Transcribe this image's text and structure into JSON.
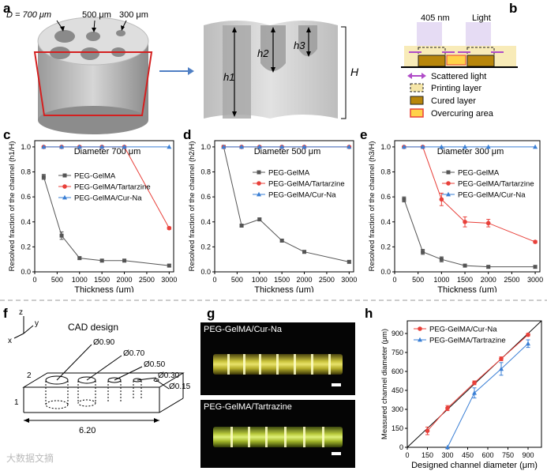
{
  "panels": {
    "a": "a",
    "b": "b",
    "c": "c",
    "d": "d",
    "e": "e",
    "f": "f",
    "g": "g",
    "h": "h"
  },
  "panel_a": {
    "d_label": "D = 700 μm",
    "d500": "500 μm",
    "d300": "300 μm",
    "h1": "h1",
    "h2": "h2",
    "h3": "h3",
    "H": "H"
  },
  "panel_b": {
    "wavelength": "405 nm",
    "light": "Light",
    "legend": [
      {
        "label": "Scattered light",
        "color": "#b04cc8"
      },
      {
        "label": "Printing layer",
        "color": "#f5e6a8"
      },
      {
        "label": "Cured layer",
        "color": "#b8860b"
      },
      {
        "label": "Overcuring area",
        "color": "#ffd24a"
      }
    ]
  },
  "panel_f": {
    "title": "CAD design",
    "axes": {
      "z": "z",
      "y": "y",
      "x": "x"
    },
    "dims": [
      "Ø0.90",
      "Ø0.70",
      "Ø0.50",
      "Ø0.30",
      "Ø0.15"
    ],
    "width": "2",
    "height": "1",
    "length": "6.20"
  },
  "panel_g": {
    "top_label": "PEG-GelMA/Cur-Na",
    "bottom_label": "PEG-GelMA/Tartrazine"
  },
  "watermark": "大数据文摘",
  "colors": {
    "gelma": "#555555",
    "tartrazine": "#e8403a",
    "curna": "#3a7fd5"
  },
  "chart_data": [
    {
      "id": "c",
      "type": "line",
      "title": "Diameter 700 μm",
      "xlabel": "Thickness (μm)",
      "ylabel": "Resolved fraction of the channel (h1/H)",
      "xlim": [
        0,
        3100
      ],
      "ylim": [
        0,
        1.05
      ],
      "xticks": [
        0,
        500,
        1000,
        1500,
        2000,
        2500,
        3000
      ],
      "xtick_labels": [
        "0",
        "500",
        "1000",
        "1500",
        "2000",
        "2500",
        "3000"
      ],
      "yticks": [
        0,
        0.2,
        0.4,
        0.6,
        0.8,
        1.0
      ],
      "ytick_labels": [
        "0.0",
        "0.2",
        "0.4",
        "0.6",
        "0.8",
        "1.0"
      ],
      "series": [
        {
          "name": "PEG-GelMA",
          "color": "#555555",
          "marker": "square",
          "x": [
            200,
            600,
            1000,
            1500,
            2000,
            3000
          ],
          "y": [
            0.76,
            0.29,
            0.11,
            0.09,
            0.09,
            0.05
          ],
          "err": [
            0.02,
            0.03,
            0.01,
            0.01,
            0.01,
            0.01
          ]
        },
        {
          "name": "PEG-GelMA/Tartarzine",
          "color": "#e8403a",
          "marker": "circle",
          "x": [
            200,
            600,
            1000,
            1500,
            2000,
            3000
          ],
          "y": [
            1,
            1,
            1,
            1,
            1,
            0.35
          ],
          "err": [
            0,
            0,
            0,
            0,
            0,
            0.01
          ]
        },
        {
          "name": "PEG-GelMA/Cur-Na",
          "color": "#3a7fd5",
          "marker": "triangle",
          "x": [
            200,
            600,
            1000,
            1500,
            2000,
            3000
          ],
          "y": [
            1,
            1,
            1,
            1,
            1,
            1
          ],
          "err": [
            0,
            0,
            0,
            0,
            0,
            0
          ]
        }
      ]
    },
    {
      "id": "d",
      "type": "line",
      "title": "Diameter 500 μm",
      "xlabel": "Thickness (μm)",
      "ylabel": "Resolved fraction of the channel (h2/H)",
      "xlim": [
        0,
        3100
      ],
      "ylim": [
        0,
        1.05
      ],
      "xticks": [
        0,
        500,
        1000,
        1500,
        2000,
        2500,
        3000
      ],
      "xtick_labels": [
        "0",
        "500",
        "1000",
        "1500",
        "2000",
        "2500",
        "3000"
      ],
      "yticks": [
        0,
        0.2,
        0.4,
        0.6,
        0.8,
        1.0
      ],
      "ytick_labels": [
        "0.0",
        "0.2",
        "0.4",
        "0.6",
        "0.8",
        "1.0"
      ],
      "series": [
        {
          "name": "PEG-GelMA",
          "color": "#555555",
          "marker": "square",
          "x": [
            200,
            600,
            1000,
            1500,
            2000,
            3000
          ],
          "y": [
            1,
            0.37,
            0.42,
            0.25,
            0.16,
            0.08
          ],
          "err": [
            0,
            0.01,
            0.01,
            0.01,
            0.01,
            0.01
          ]
        },
        {
          "name": "PEG-GelMA/Tartarzine",
          "color": "#e8403a",
          "marker": "circle",
          "x": [
            200,
            600,
            1000,
            1500,
            2000,
            3000
          ],
          "y": [
            1,
            1,
            1,
            1,
            1,
            1
          ],
          "err": [
            0,
            0,
            0,
            0,
            0,
            0
          ]
        },
        {
          "name": "PEG-GelMA/Cur-Na",
          "color": "#3a7fd5",
          "marker": "triangle",
          "x": [
            200,
            600,
            1000,
            1500,
            2000,
            3000
          ],
          "y": [
            1,
            1,
            1,
            1,
            1,
            1
          ],
          "err": [
            0,
            0,
            0,
            0,
            0,
            0
          ]
        }
      ]
    },
    {
      "id": "e",
      "type": "line",
      "title": "Diameter 300 μm",
      "xlabel": "Thickness (μm)",
      "ylabel": "Resolved fraction of the channel (h3/H)",
      "xlim": [
        0,
        3100
      ],
      "ylim": [
        0,
        1.05
      ],
      "xticks": [
        0,
        500,
        1000,
        1500,
        2000,
        2500,
        3000
      ],
      "xtick_labels": [
        "0",
        "500",
        "1000",
        "1500",
        "2000",
        "2500",
        "3000"
      ],
      "yticks": [
        0,
        0.2,
        0.4,
        0.6,
        0.8,
        1.0
      ],
      "ytick_labels": [
        "0.0",
        "0.2",
        "0.4",
        "0.6",
        "0.8",
        "1.0"
      ],
      "series": [
        {
          "name": "PEG-GelMA",
          "color": "#555555",
          "marker": "square",
          "x": [
            200,
            600,
            1000,
            1500,
            2000,
            3000
          ],
          "y": [
            0.58,
            0.16,
            0.1,
            0.05,
            0.04,
            0.04
          ],
          "err": [
            0.02,
            0.02,
            0.02,
            0.01,
            0.01,
            0.01
          ]
        },
        {
          "name": "PEG-GelMA/Tartarzine",
          "color": "#e8403a",
          "marker": "circle",
          "x": [
            200,
            600,
            1000,
            1500,
            2000,
            3000
          ],
          "y": [
            1,
            1,
            0.58,
            0.4,
            0.39,
            0.24
          ],
          "err": [
            0,
            0,
            0.05,
            0.04,
            0.03,
            0.01
          ]
        },
        {
          "name": "PEG-GelMA/Cur-Na",
          "color": "#3a7fd5",
          "marker": "triangle",
          "x": [
            200,
            600,
            1000,
            1500,
            2000,
            3000
          ],
          "y": [
            1,
            1,
            1,
            1,
            1,
            1
          ],
          "err": [
            0,
            0,
            0,
            0,
            0,
            0
          ]
        }
      ]
    },
    {
      "id": "h",
      "type": "line",
      "xlabel": "Designed channel diameter (μm)",
      "ylabel": "Measured channel diameter (μm)",
      "xlim": [
        0,
        1000
      ],
      "ylim": [
        0,
        1000
      ],
      "xticks": [
        0,
        150,
        300,
        450,
        600,
        750,
        900
      ],
      "xtick_labels": [
        "0",
        "150",
        "300",
        "450",
        "600",
        "750",
        "900"
      ],
      "yticks": [
        0,
        150,
        300,
        450,
        600,
        750,
        900
      ],
      "ytick_labels": [
        "0",
        "150",
        "300",
        "450",
        "600",
        "750",
        "900"
      ],
      "reference_line": [
        [
          0,
          0
        ],
        [
          1000,
          1000
        ]
      ],
      "series": [
        {
          "name": "PEG-GelMA/Cur-Na",
          "color": "#e8403a",
          "marker": "circle",
          "x": [
            150,
            300,
            500,
            700,
            900
          ],
          "y": [
            130,
            310,
            510,
            700,
            890
          ],
          "err": [
            30,
            20,
            15,
            15,
            10
          ]
        },
        {
          "name": "PEG-GelMA/Tartrazine",
          "color": "#3a7fd5",
          "marker": "triangle",
          "x": [
            300,
            500,
            700,
            900
          ],
          "y": [
            0,
            430,
            620,
            820
          ],
          "err": [
            0,
            40,
            50,
            30
          ]
        }
      ]
    }
  ]
}
